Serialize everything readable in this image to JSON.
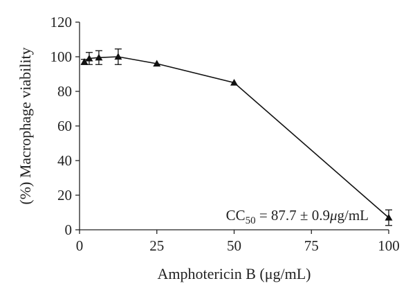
{
  "chart_data": {
    "type": "line",
    "title": "",
    "xlabel": "Amphotericin B (μg/mL)",
    "ylabel": "(%) Macrophage viability",
    "xlim": [
      0,
      100
    ],
    "ylim": [
      0,
      120
    ],
    "xticks": [
      "0",
      "25",
      "50",
      "75",
      "100"
    ],
    "yticks": [
      "0",
      "20",
      "40",
      "60",
      "80",
      "100",
      "120"
    ],
    "grid": false,
    "legend": "none",
    "marker": "triangle",
    "series": [
      {
        "x": [
          1.56,
          3.125,
          6.25,
          12.5,
          25,
          50,
          100
        ],
        "y": [
          97,
          99,
          99.5,
          100,
          96,
          85,
          7
        ],
        "yerr": [
          1.5,
          3.5,
          4,
          4.5,
          0.5,
          0.5,
          4.5
        ]
      }
    ],
    "annotation": {
      "prefix": "CC",
      "subscript": "50",
      "suffix": " = 87.7 ± 0.9",
      "unit_prefix": "μ",
      "unit_suffix": "g/mL"
    }
  }
}
